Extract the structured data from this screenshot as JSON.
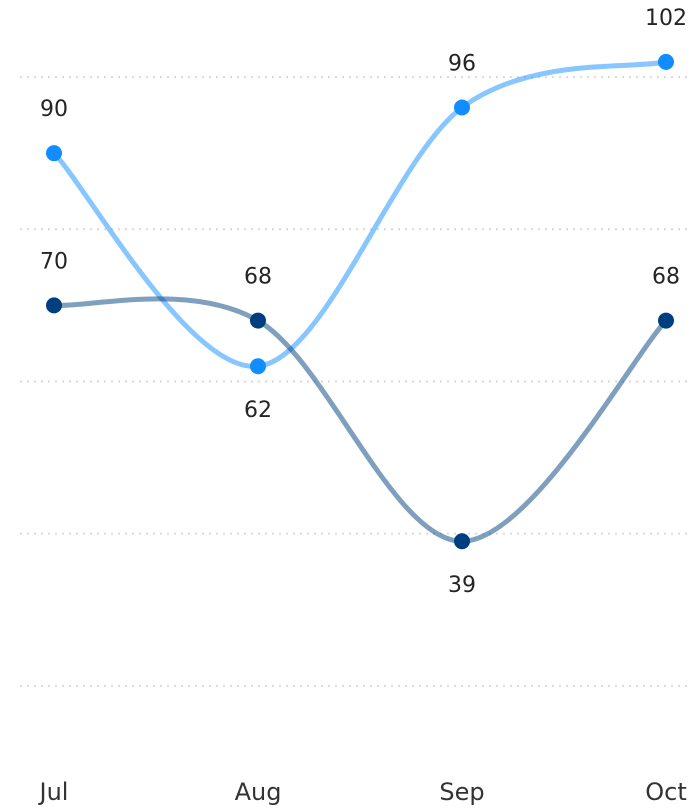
{
  "chart_data": {
    "type": "line",
    "categories": [
      "Jul",
      "Aug",
      "Sep",
      "Oct"
    ],
    "series": [
      {
        "color": "#118dff",
        "values": [
          90,
          62,
          96,
          102
        ]
      },
      {
        "color": "#003f7f",
        "values": [
          70,
          68,
          39,
          68
        ]
      }
    ],
    "ylim": [
      0,
      110
    ],
    "yticks": [
      20,
      40,
      60,
      80,
      100
    ],
    "grid": true
  }
}
